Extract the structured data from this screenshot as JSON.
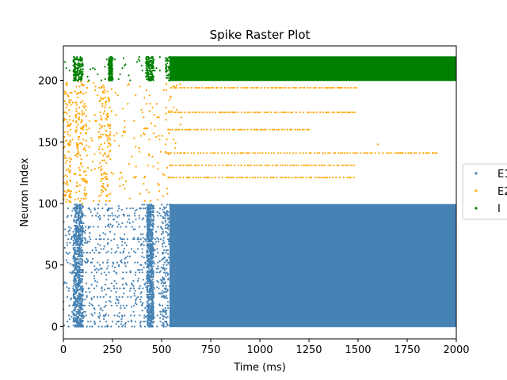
{
  "chart_data": {
    "type": "scatter",
    "title": "Spike Raster Plot",
    "xlabel": "Time (ms)",
    "ylabel": "Neuron Index",
    "xlim": [
      0,
      2000
    ],
    "ylim": [
      -10,
      228
    ],
    "xticks": [
      0,
      250,
      500,
      750,
      1000,
      1250,
      1500,
      1750,
      2000
    ],
    "yticks": [
      0,
      50,
      100,
      150,
      200
    ],
    "grid": false,
    "legend_position": "right (partially clipped)",
    "series": [
      {
        "name": "E1",
        "color": "#4682b4",
        "neuron_range": [
          0,
          99
        ],
        "description_bursts_ms": [
          [
            50,
            100
          ],
          [
            425,
            460
          ]
        ],
        "sparse_activity_ms": [
          0,
          540
        ],
        "sustained_dense_activity_ms": [
          540,
          2000
        ]
      },
      {
        "name": "E2",
        "color": "#ffa500",
        "neuron_range": [
          100,
          199
        ],
        "sparse_activity_ms": [
          0,
          540
        ],
        "persistent_neurons": [
          194,
          174,
          160,
          141,
          131,
          121
        ],
        "persistent_end_ms": [
          1500,
          1500,
          1250,
          1900,
          1480,
          1480
        ]
      },
      {
        "name": "I",
        "color": "#008000",
        "neuron_range": [
          200,
          219
        ],
        "bursts_ms": [
          [
            50,
            100
          ],
          [
            230,
            250
          ],
          [
            420,
            460
          ]
        ],
        "sustained_dense_activity_ms": [
          540,
          2000
        ]
      }
    ]
  }
}
